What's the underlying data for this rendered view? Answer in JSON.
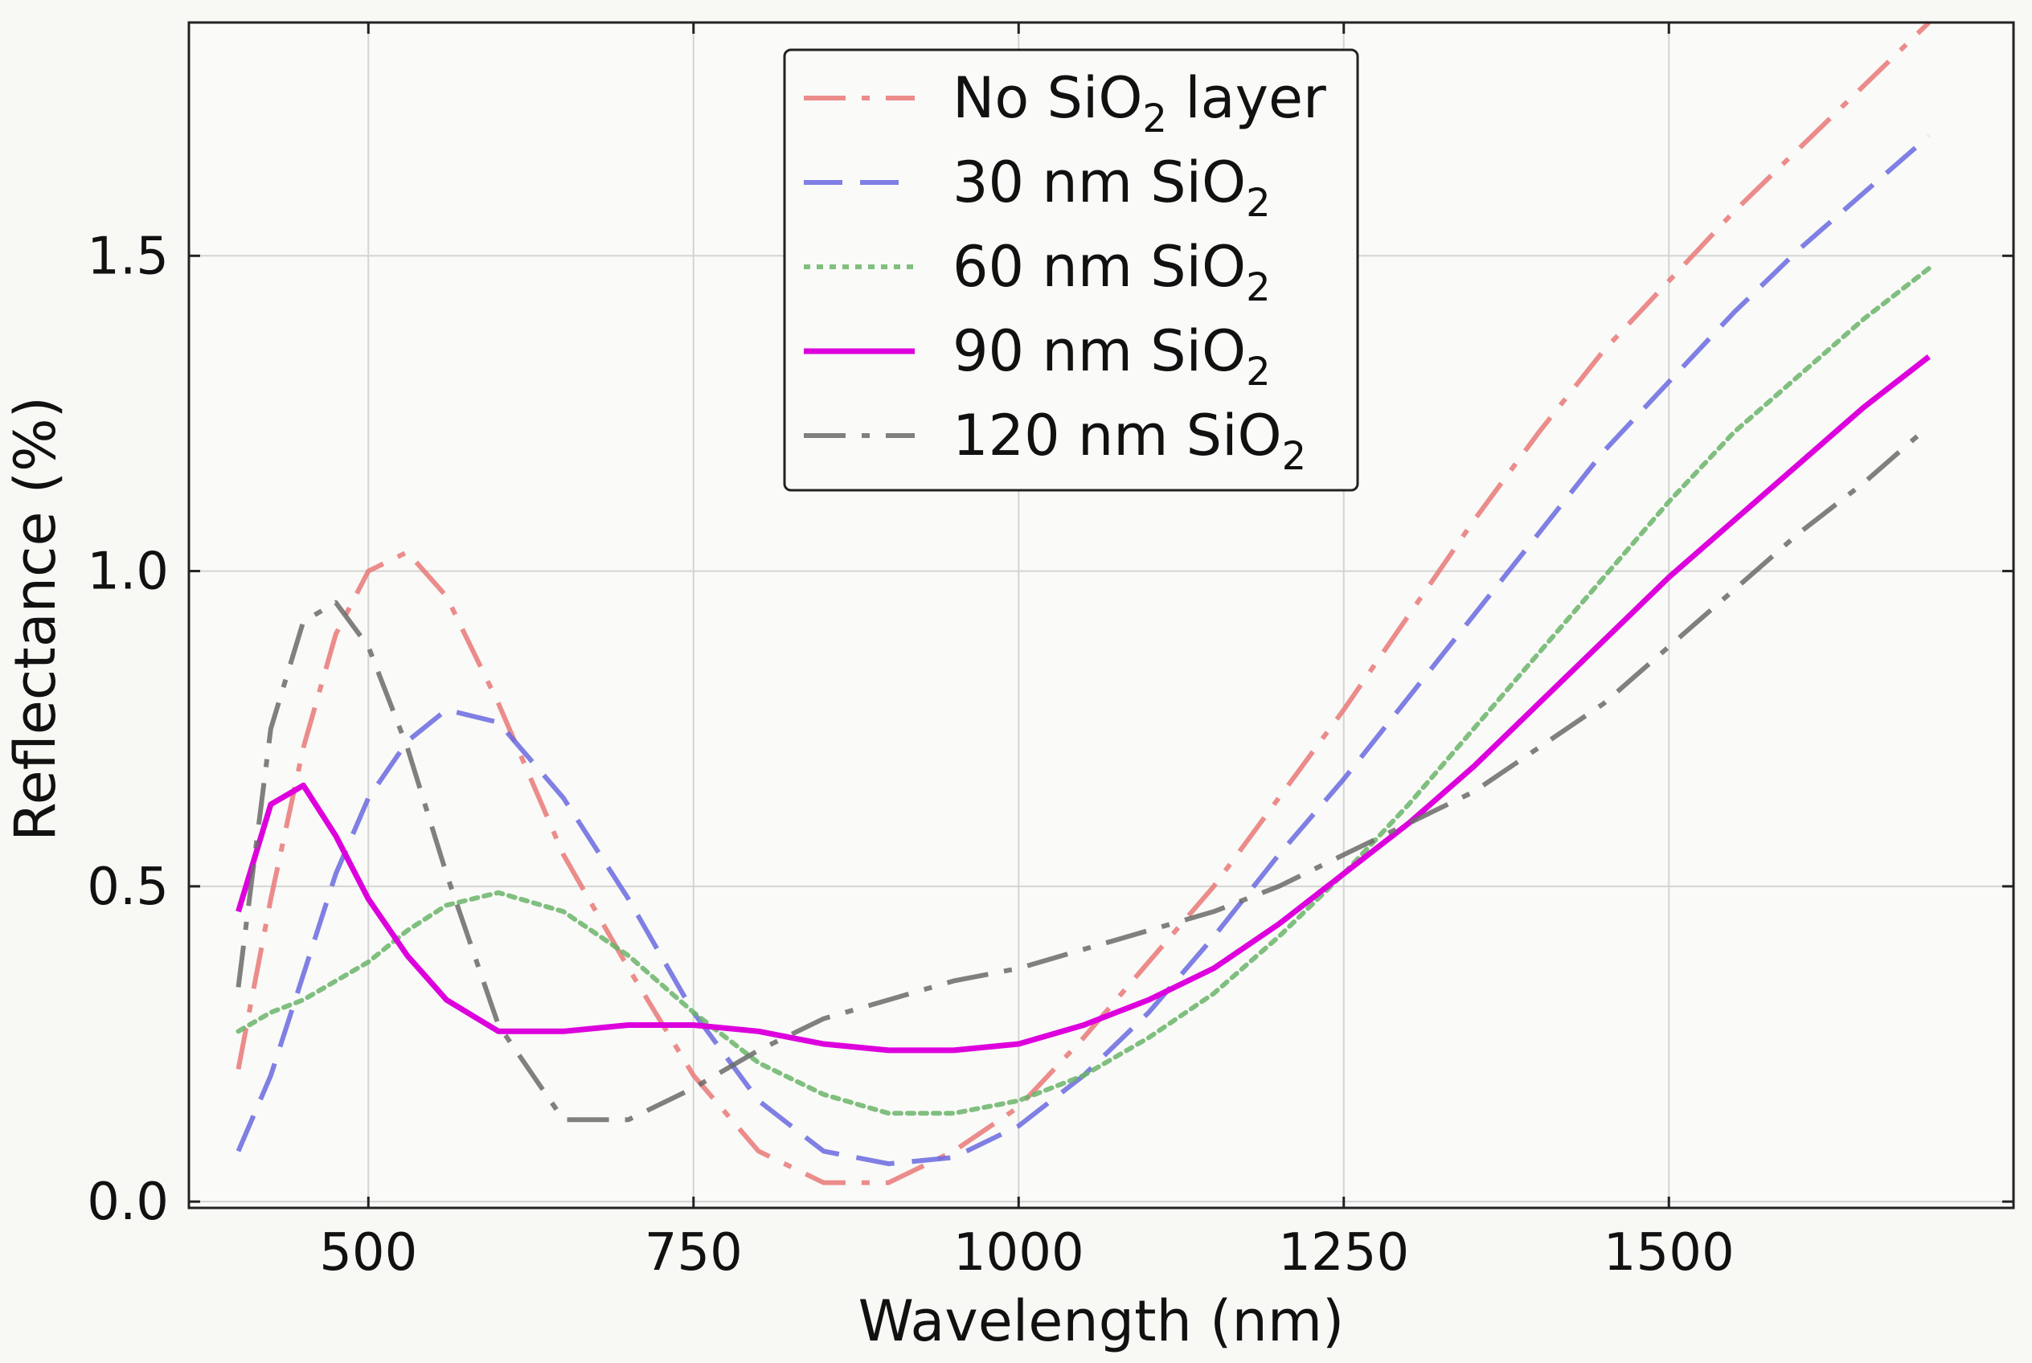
{
  "chart_data": {
    "type": "line",
    "title": "",
    "xlabel": "Wavelength (nm)",
    "ylabel": "Reflectance (%)",
    "xlim": [
      362,
      1765
    ],
    "ylim": [
      -0.01,
      1.87
    ],
    "xticks": [
      500,
      750,
      1000,
      1250,
      1500
    ],
    "xtick_labels": [
      "500",
      "750",
      "1000",
      "1250",
      "1500"
    ],
    "yticks": [
      0.0,
      0.5,
      1.0,
      1.5
    ],
    "ytick_labels": [
      "0.0",
      "0.5",
      "1.0",
      "1.5"
    ],
    "grid": true,
    "legend_position": "top-center",
    "series": [
      {
        "name": "No SiO2 layer",
        "legend_prefix": "No SiO",
        "legend_sub": "2",
        "legend_suffix": " layer",
        "color": "#e87878",
        "style": "dashdot",
        "x": [
          400,
          425,
          450,
          475,
          500,
          530,
          560,
          600,
          650,
          700,
          750,
          800,
          850,
          900,
          950,
          1000,
          1050,
          1100,
          1150,
          1200,
          1250,
          1300,
          1350,
          1400,
          1450,
          1500,
          1550,
          1600,
          1650,
          1700
        ],
        "y": [
          0.21,
          0.48,
          0.72,
          0.9,
          1.0,
          1.03,
          0.96,
          0.79,
          0.55,
          0.37,
          0.2,
          0.08,
          0.03,
          0.03,
          0.08,
          0.15,
          0.26,
          0.38,
          0.5,
          0.64,
          0.78,
          0.93,
          1.08,
          1.22,
          1.35,
          1.46,
          1.57,
          1.67,
          1.77,
          1.87
        ]
      },
      {
        "name": "30 nm SiO2",
        "legend_prefix": "30 nm SiO",
        "legend_sub": "2",
        "legend_suffix": "",
        "color": "#6868e0",
        "style": "dashed",
        "x": [
          400,
          425,
          450,
          475,
          500,
          530,
          560,
          600,
          650,
          700,
          750,
          800,
          850,
          900,
          950,
          1000,
          1050,
          1100,
          1150,
          1200,
          1250,
          1300,
          1350,
          1400,
          1450,
          1500,
          1550,
          1600,
          1650,
          1700
        ],
        "y": [
          0.08,
          0.2,
          0.36,
          0.52,
          0.64,
          0.73,
          0.78,
          0.76,
          0.64,
          0.48,
          0.3,
          0.16,
          0.08,
          0.06,
          0.07,
          0.12,
          0.2,
          0.3,
          0.42,
          0.55,
          0.67,
          0.8,
          0.93,
          1.06,
          1.19,
          1.3,
          1.41,
          1.51,
          1.6,
          1.69
        ]
      },
      {
        "name": "60 nm SiO2",
        "legend_prefix": "60 nm SiO",
        "legend_sub": "2",
        "legend_suffix": "",
        "color": "#6ab46a",
        "style": "dotted",
        "x": [
          400,
          425,
          450,
          475,
          500,
          530,
          560,
          600,
          650,
          700,
          750,
          800,
          850,
          900,
          950,
          1000,
          1050,
          1100,
          1150,
          1200,
          1250,
          1300,
          1350,
          1400,
          1450,
          1500,
          1550,
          1600,
          1650,
          1700
        ],
        "y": [
          0.27,
          0.3,
          0.32,
          0.35,
          0.38,
          0.43,
          0.47,
          0.49,
          0.46,
          0.39,
          0.3,
          0.22,
          0.17,
          0.14,
          0.14,
          0.16,
          0.2,
          0.26,
          0.33,
          0.42,
          0.52,
          0.63,
          0.75,
          0.87,
          0.99,
          1.11,
          1.22,
          1.31,
          1.4,
          1.48
        ]
      },
      {
        "name": "90 nm SiO2",
        "legend_prefix": "90 nm SiO",
        "legend_sub": "2",
        "legend_suffix": "",
        "color": "#dd00dd",
        "style": "solid",
        "x": [
          400,
          425,
          450,
          475,
          500,
          530,
          560,
          600,
          650,
          700,
          750,
          800,
          850,
          900,
          950,
          1000,
          1050,
          1100,
          1150,
          1200,
          1250,
          1300,
          1350,
          1400,
          1450,
          1500,
          1550,
          1600,
          1650,
          1700
        ],
        "y": [
          0.46,
          0.63,
          0.66,
          0.58,
          0.48,
          0.39,
          0.32,
          0.27,
          0.27,
          0.28,
          0.28,
          0.27,
          0.25,
          0.24,
          0.24,
          0.25,
          0.28,
          0.32,
          0.37,
          0.44,
          0.52,
          0.6,
          0.69,
          0.79,
          0.89,
          0.99,
          1.08,
          1.17,
          1.26,
          1.34
        ]
      },
      {
        "name": "120 nm SiO2",
        "legend_prefix": "120 nm SiO",
        "legend_sub": "2",
        "legend_suffix": "",
        "color": "#6a6a6a",
        "style": "dashdot",
        "x": [
          400,
          425,
          450,
          475,
          500,
          530,
          560,
          600,
          650,
          700,
          750,
          800,
          850,
          900,
          950,
          1000,
          1050,
          1100,
          1150,
          1200,
          1250,
          1300,
          1350,
          1400,
          1450,
          1500,
          1550,
          1600,
          1650,
          1700
        ],
        "y": [
          0.34,
          0.75,
          0.92,
          0.95,
          0.88,
          0.72,
          0.52,
          0.28,
          0.13,
          0.13,
          0.18,
          0.24,
          0.29,
          0.32,
          0.35,
          0.37,
          0.4,
          0.43,
          0.46,
          0.5,
          0.55,
          0.6,
          0.65,
          0.72,
          0.79,
          0.88,
          0.97,
          1.06,
          1.14,
          1.23
        ]
      }
    ]
  }
}
